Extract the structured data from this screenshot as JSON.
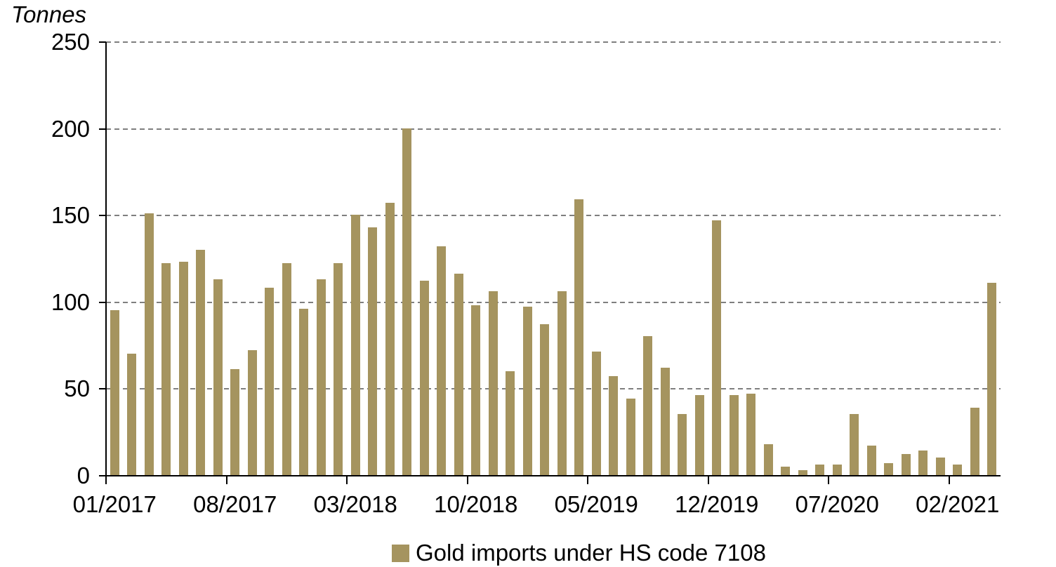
{
  "chart": {
    "y_axis_title": "Tonnes",
    "legend_label": "Gold imports under HS code 7108",
    "bar_color": "#A5945F",
    "gridline_color": "#7F7F7F",
    "axis_color": "#000000"
  },
  "chart_data": {
    "type": "bar",
    "title": "",
    "ylabel": "Tonnes",
    "xlabel": "",
    "ylim": [
      0,
      250
    ],
    "y_ticks": [
      0,
      50,
      100,
      150,
      200,
      250
    ],
    "grid": "horizontal-dashed",
    "legend_position": "bottom",
    "x_label_interval_months": 7,
    "x_axis_tick_labels": [
      "01/2017",
      "08/2017",
      "03/2018",
      "10/2018",
      "05/2019",
      "12/2019",
      "07/2020",
      "02/2021"
    ],
    "categories": [
      "01/2017",
      "02/2017",
      "03/2017",
      "04/2017",
      "05/2017",
      "06/2017",
      "07/2017",
      "08/2017",
      "09/2017",
      "10/2017",
      "11/2017",
      "12/2017",
      "01/2018",
      "02/2018",
      "03/2018",
      "04/2018",
      "05/2018",
      "06/2018",
      "07/2018",
      "08/2018",
      "09/2018",
      "10/2018",
      "11/2018",
      "12/2018",
      "01/2019",
      "02/2019",
      "03/2019",
      "04/2019",
      "05/2019",
      "06/2019",
      "07/2019",
      "08/2019",
      "09/2019",
      "10/2019",
      "11/2019",
      "12/2019",
      "01/2020",
      "02/2020",
      "03/2020",
      "04/2020",
      "05/2020",
      "06/2020",
      "07/2020",
      "08/2020",
      "09/2020",
      "10/2020",
      "11/2020",
      "12/2020",
      "01/2021",
      "02/2021",
      "03/2021",
      "04/2021"
    ],
    "series": [
      {
        "name": "Gold imports under HS code 7108",
        "values": [
          95,
          70,
          151,
          122,
          123,
          130,
          113,
          61,
          72,
          108,
          122,
          96,
          113,
          122,
          150,
          143,
          157,
          200,
          112,
          132,
          116,
          98,
          106,
          60,
          97,
          87,
          106,
          159,
          71,
          57,
          44,
          80,
          62,
          35,
          46,
          147,
          46,
          47,
          18,
          5,
          3,
          6,
          6,
          35,
          17,
          7,
          12,
          14,
          10,
          6,
          39,
          111
        ]
      }
    ]
  }
}
